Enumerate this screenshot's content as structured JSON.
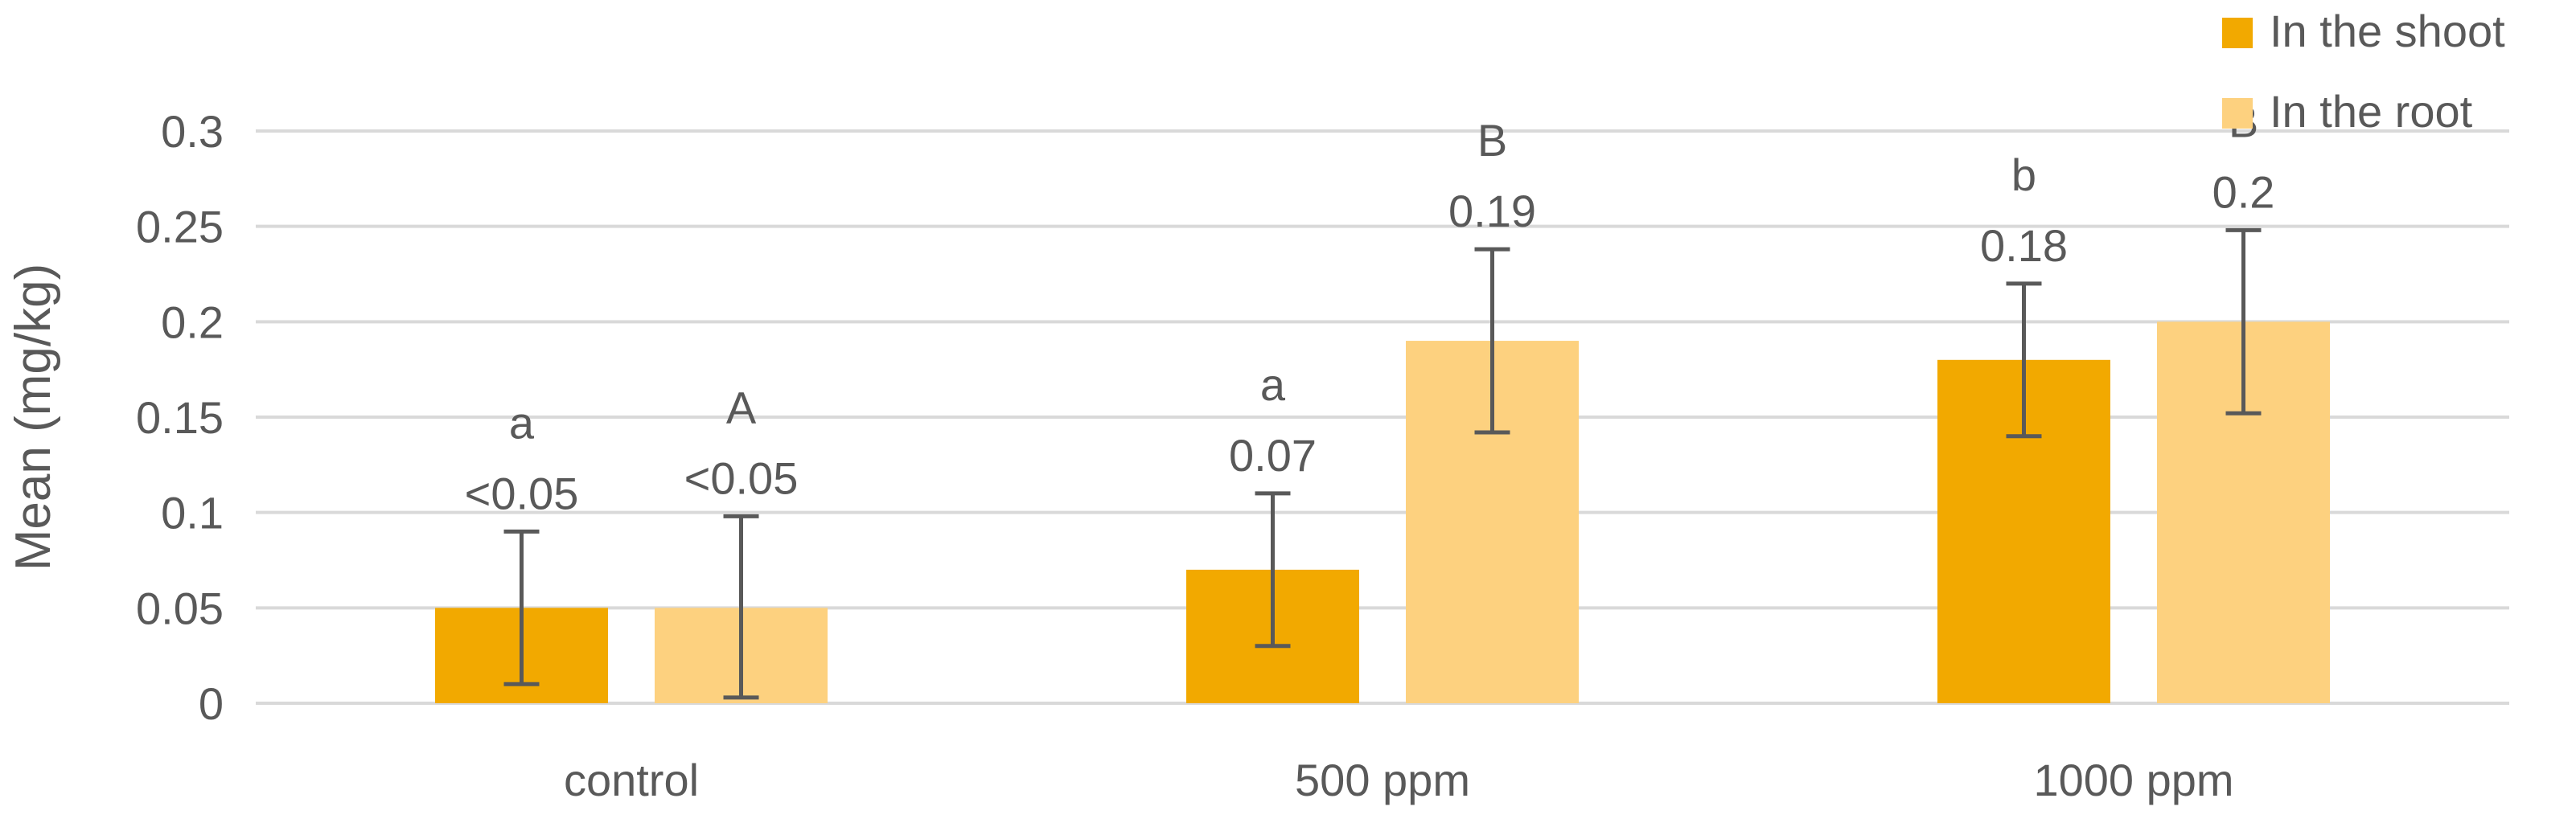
{
  "chart_data": {
    "type": "bar",
    "title": "",
    "xlabel": "",
    "ylabel": "Mean (mg/kg)",
    "categories": [
      "control",
      "500 ppm",
      "1000 ppm"
    ],
    "ylim": [
      0,
      0.3
    ],
    "yticks": [
      0,
      0.05,
      0.1,
      0.15,
      0.2,
      0.25,
      0.3
    ],
    "ytick_labels": [
      "0",
      "0.05",
      "0.1",
      "0.15",
      "0.2",
      "0.25",
      "0.3"
    ],
    "grid": true,
    "legend_position": "top-right",
    "series": [
      {
        "name": "In the shoot",
        "color": "#f2a900",
        "values": [
          0.05,
          0.07,
          0.18
        ],
        "error_low": [
          0.01,
          0.03,
          0.14
        ],
        "error_high": [
          0.09,
          0.11,
          0.22
        ],
        "data_labels": [
          "<0.05",
          "0.07",
          "0.18"
        ],
        "significance": [
          "a",
          "a",
          "b"
        ]
      },
      {
        "name": "In the root",
        "color": "#fdd17f",
        "values": [
          0.05,
          0.19,
          0.2
        ],
        "error_low": [
          0.003,
          0.142,
          0.152
        ],
        "error_high": [
          0.098,
          0.238,
          0.248
        ],
        "data_labels": [
          "<0.05",
          "0.19",
          "0.2"
        ],
        "significance": [
          "A",
          "B",
          "B"
        ]
      }
    ],
    "colors": {
      "gridline": "#d9d9d9",
      "axis_text": "#595959",
      "error_bar": "#595959"
    }
  }
}
